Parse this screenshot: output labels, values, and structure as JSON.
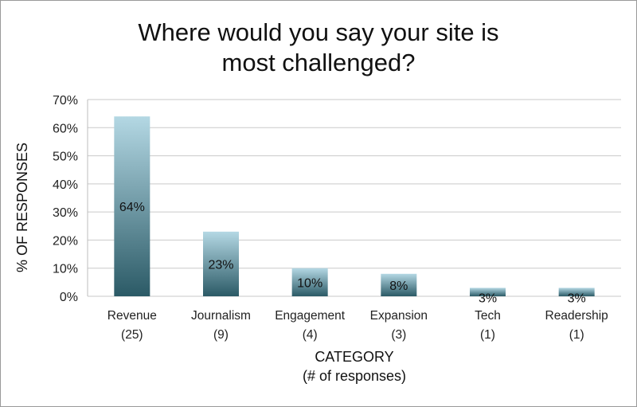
{
  "chart_data": {
    "type": "bar",
    "title": [
      "Where would you say your site is",
      "most challenged?"
    ],
    "categories": [
      "Revenue",
      "Journalism",
      "Engagement",
      "Expansion",
      "Tech",
      "Readership"
    ],
    "category_counts": [
      "(25)",
      "(9)",
      "(4)",
      "(3)",
      "(1)",
      "(1)"
    ],
    "values": [
      64,
      23,
      10,
      8,
      3,
      3
    ],
    "data_labels": [
      "64%",
      "23%",
      "10%",
      "8%",
      "3%",
      "3%"
    ],
    "ylabel": "% OF RESPONSES",
    "xlabel": [
      "CATEGORY",
      "(# of responses)"
    ],
    "ylim": [
      0,
      70
    ],
    "yticks": [
      "0%",
      "10%",
      "20%",
      "30%",
      "40%",
      "50%",
      "60%",
      "70%"
    ],
    "grid": true,
    "bar_color_top": "#b4d8e4",
    "bar_color_bottom": "#2b5a66"
  }
}
